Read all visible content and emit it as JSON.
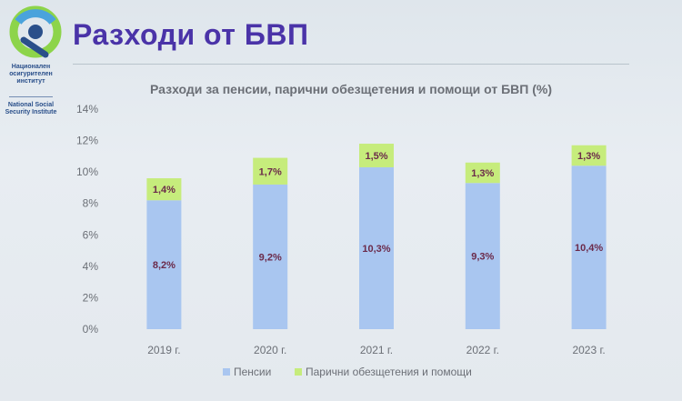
{
  "header": {
    "title": "Разходи от БВП",
    "org_name_bg": [
      "Национален",
      "осигурителен",
      "институт"
    ],
    "org_name_en": [
      "National Social",
      "Security Institute"
    ]
  },
  "colors": {
    "pensions": "#a9c6f0",
    "compensation": "#c6ec7c",
    "title": "#4a33a8",
    "label": "#6b2a4a",
    "axis_text": "#6b6f76"
  },
  "chart_data": {
    "type": "bar",
    "stacked": true,
    "title": "Разходи за пенсии, парични обезщетения и помощи от БВП (%)",
    "categories": [
      "2019 г.",
      "2020 г.",
      "2021 г.",
      "2022 г.",
      "2023 г."
    ],
    "series": [
      {
        "name": "Пенсии",
        "values": [
          8.2,
          9.2,
          10.3,
          9.3,
          10.4
        ],
        "labels": [
          "8,2%",
          "9,2%",
          "10,3%",
          "9,3%",
          "10,4%"
        ]
      },
      {
        "name": "Парични обезщетения и помощи",
        "values": [
          1.4,
          1.7,
          1.5,
          1.3,
          1.3
        ],
        "labels": [
          "1,4%",
          "1,7%",
          "1,5%",
          "1,3%",
          "1,3%"
        ]
      }
    ],
    "ylim": [
      0,
      14
    ],
    "yticks": [
      0,
      2,
      4,
      6,
      8,
      10,
      12,
      14
    ],
    "ytick_labels": [
      "0%",
      "2%",
      "4%",
      "6%",
      "8%",
      "10%",
      "12%",
      "14%"
    ],
    "legend_position": "bottom",
    "grid": false
  }
}
